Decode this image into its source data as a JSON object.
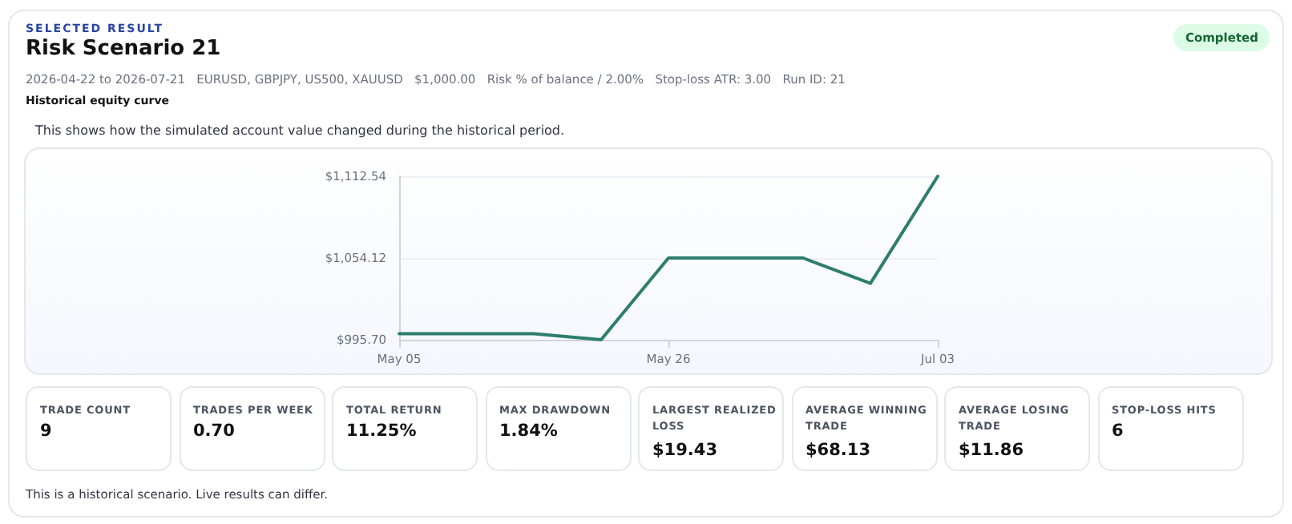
{
  "chart_data": {
    "type": "line",
    "title": "Risk Scenario 21",
    "subtitle": "2026-04-22 to 2026-07-21   EURUSD, GBPJPY, US500, XAUUSD   $1,000.00   Risk % of balance / 2.00%   Stop-loss ATR: 3.00   Run ID: 21",
    "annotations": [
      "SELECTED RESULT",
      "Completed",
      "Historical equity curve",
      "This shows how the simulated account value changed during the historical period.",
      "TRADE COUNT",
      "9",
      "TRADES PER WEEK",
      "0.70",
      "TOTAL RETURN",
      "11.25%",
      "MAX DRAWDOWN",
      "1.84%",
      "LARGEST REALIZED LOSS",
      "$19.43",
      "AVERAGE WINNING TRADE",
      "$68.13",
      "AVERAGE LOSING TRADE",
      "$11.86",
      "STOP-LOSS HITS",
      "6",
      "This is a historical scenario. Live results can differ."
    ],
    "categories": [
      "May 05",
      null,
      null,
      null,
      "May 26",
      null,
      null,
      null,
      "Jul 03"
    ],
    "series": [
      {
        "color": "#2e7d6e",
        "values": [
          1000.0,
          1000.0,
          1000.0,
          995.7,
          1054.12,
          1054.12,
          1054.12,
          1036.0,
          1112.54
        ]
      }
    ],
    "ylim": [
      995.7,
      1112.54
    ],
    "yticks": [
      {
        "value": 995.7,
        "label": "$995.70"
      },
      {
        "value": 1054.12,
        "label": "$1,054.12"
      },
      {
        "value": 1112.54,
        "label": "$1,112.54"
      }
    ],
    "grid": "y",
    "marker": "none",
    "line_style": "solid"
  }
}
